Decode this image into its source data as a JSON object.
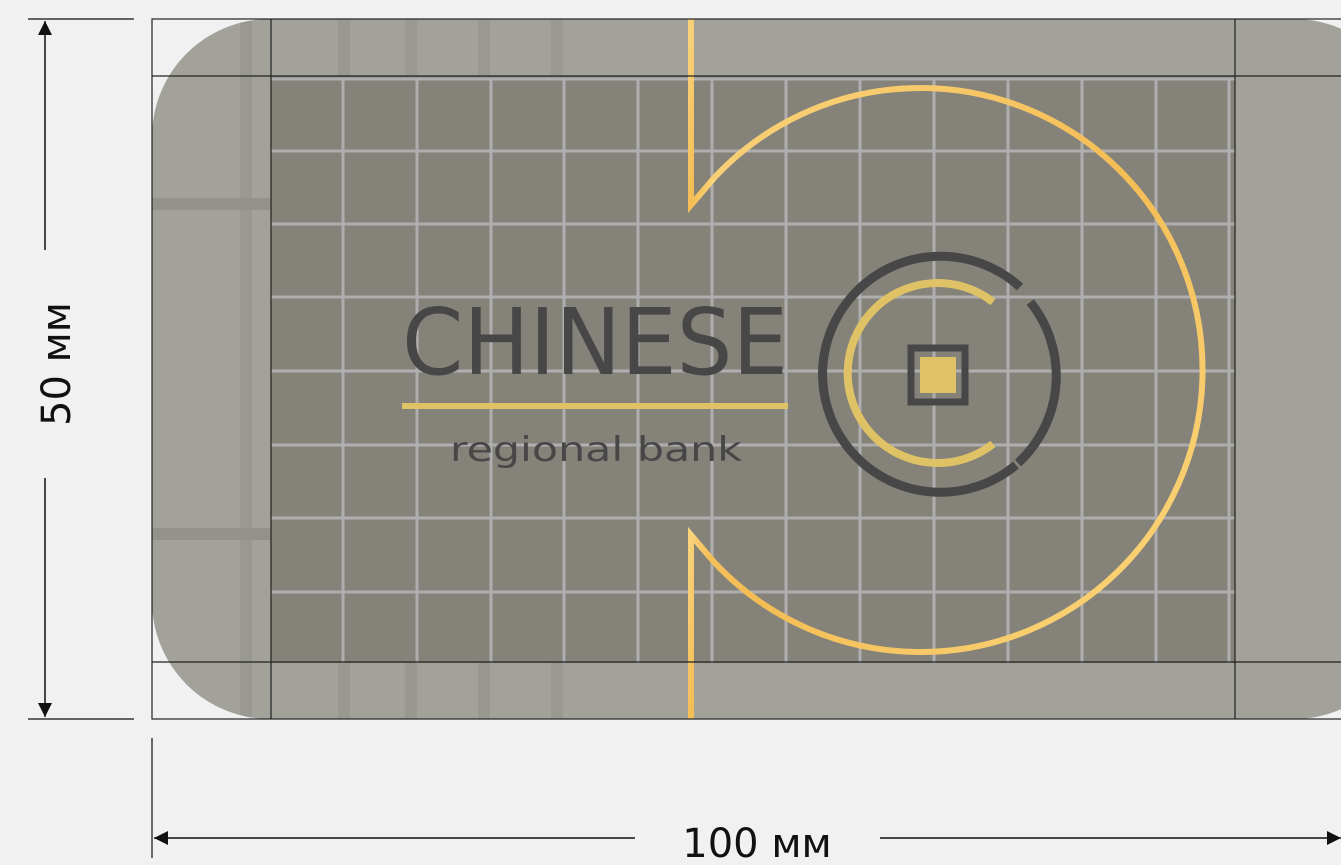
{
  "dimensions": {
    "width_label": "100 мм",
    "height_label": "50 мм"
  },
  "grid": {
    "columns": 13,
    "rows": 8
  },
  "brand": {
    "name": "CHINESE",
    "tagline": "regional bank"
  },
  "colors": {
    "page_background": "#f1f1f1",
    "card_light": "#a2a19a",
    "card_dark": "#858279",
    "grid_line": "#aeaeae",
    "gold": "#f6c25c",
    "gold_soft": "#dfc266",
    "logo_dark": "#474747",
    "guide_line": "#111111"
  },
  "icons": {
    "logo_mark": "coin-logo-icon"
  }
}
